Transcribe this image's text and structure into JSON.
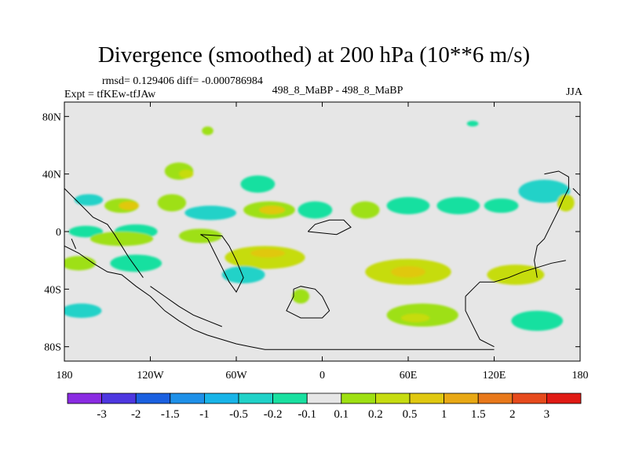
{
  "title": "Divergence (smoothed) at 200 hPa (10**6 m/s)",
  "stats": "rmsd= 0.129406 diff= -0.000786984",
  "experiment": "Expt = tfKEw-tfJAw",
  "cases": "498_8_MaBP - 498_8_MaBP",
  "season": "JJA",
  "colors": {
    "background": "#e6e6e6",
    "coast": "#000000",
    "levels": [
      "#8a2be2",
      "#4d37e0",
      "#1a60e0",
      "#1e90e8",
      "#18b4e8",
      "#20d2c8",
      "#19e0a0",
      "#e6e6e6",
      "#9ee012",
      "#c6dc10",
      "#e0c810",
      "#e8a814",
      "#e8781a",
      "#e64a1c",
      "#e01a14"
    ]
  },
  "chart_data": {
    "type": "heatmap",
    "projection": "cylindrical equidistant",
    "xlim": [
      -180,
      180
    ],
    "ylim": [
      -90,
      90
    ],
    "x_ticks": [
      {
        "value": -180,
        "label": "180"
      },
      {
        "value": -120,
        "label": "120W"
      },
      {
        "value": -60,
        "label": "60W"
      },
      {
        "value": 0,
        "label": "0"
      },
      {
        "value": 60,
        "label": "60E"
      },
      {
        "value": 120,
        "label": "120E"
      },
      {
        "value": 180,
        "label": "180"
      }
    ],
    "y_ticks": [
      {
        "value": 80,
        "label": "80N"
      },
      {
        "value": 40,
        "label": "40N"
      },
      {
        "value": 0,
        "label": "0"
      },
      {
        "value": -40,
        "label": "40S"
      },
      {
        "value": -80,
        "label": "80S"
      }
    ],
    "contour_levels": [
      "-3",
      "-2",
      "-1.5",
      "-1",
      "-0.5",
      "-0.2",
      "-0.1",
      "0.1",
      "0.2",
      "0.5",
      "1",
      "1.5",
      "2",
      "3"
    ],
    "features": [
      {
        "lon": -163,
        "lat": 22,
        "rlon": 10,
        "rlat": 4,
        "c": 5
      },
      {
        "lon": -140,
        "lat": 18,
        "rlon": 12,
        "rlat": 5,
        "c": 8
      },
      {
        "lon": -135,
        "lat": 18,
        "rlon": 7,
        "rlat": 3,
        "c": 10
      },
      {
        "lon": -165,
        "lat": 0,
        "rlon": 12,
        "rlat": 4,
        "c": 6
      },
      {
        "lon": -130,
        "lat": 0,
        "rlon": 15,
        "rlat": 5,
        "c": 6
      },
      {
        "lon": -105,
        "lat": 20,
        "rlon": 10,
        "rlat": 6,
        "c": 8
      },
      {
        "lon": -100,
        "lat": 42,
        "rlon": 10,
        "rlat": 6,
        "c": 8
      },
      {
        "lon": -95,
        "lat": 40,
        "rlon": 5,
        "rlat": 3,
        "c": 9
      },
      {
        "lon": -78,
        "lat": 13,
        "rlon": 18,
        "rlat": 5,
        "c": 5
      },
      {
        "lon": -45,
        "lat": 33,
        "rlon": 12,
        "rlat": 6,
        "c": 6
      },
      {
        "lon": -37,
        "lat": 15,
        "rlon": 18,
        "rlat": 6,
        "c": 8
      },
      {
        "lon": -35,
        "lat": 15,
        "rlon": 9,
        "rlat": 3,
        "c": 10
      },
      {
        "lon": -5,
        "lat": 15,
        "rlon": 12,
        "rlat": 6,
        "c": 6
      },
      {
        "lon": 30,
        "lat": 15,
        "rlon": 10,
        "rlat": 6,
        "c": 8
      },
      {
        "lon": 60,
        "lat": 18,
        "rlon": 15,
        "rlat": 6,
        "c": 6
      },
      {
        "lon": 95,
        "lat": 18,
        "rlon": 15,
        "rlat": 6,
        "c": 6
      },
      {
        "lon": 125,
        "lat": 18,
        "rlon": 12,
        "rlat": 5,
        "c": 6
      },
      {
        "lon": 155,
        "lat": 28,
        "rlon": 18,
        "rlat": 8,
        "c": 5
      },
      {
        "lon": 170,
        "lat": 20,
        "rlon": 6,
        "rlat": 6,
        "c": 9
      },
      {
        "lon": -140,
        "lat": -5,
        "rlon": 22,
        "rlat": 5,
        "c": 8
      },
      {
        "lon": -85,
        "lat": -3,
        "rlon": 15,
        "rlat": 5,
        "c": 8
      },
      {
        "lon": -40,
        "lat": -18,
        "rlon": 28,
        "rlat": 8,
        "c": 9
      },
      {
        "lon": -38,
        "lat": -15,
        "rlon": 12,
        "rlat": 3,
        "c": 10
      },
      {
        "lon": 60,
        "lat": -28,
        "rlon": 30,
        "rlat": 9,
        "c": 9
      },
      {
        "lon": 60,
        "lat": -28,
        "rlon": 12,
        "rlat": 4,
        "c": 10
      },
      {
        "lon": 135,
        "lat": -30,
        "rlon": 20,
        "rlat": 7,
        "c": 9
      },
      {
        "lon": -55,
        "lat": -30,
        "rlon": 15,
        "rlat": 6,
        "c": 5
      },
      {
        "lon": -170,
        "lat": -22,
        "rlon": 12,
        "rlat": 5,
        "c": 8
      },
      {
        "lon": -130,
        "lat": -22,
        "rlon": 18,
        "rlat": 6,
        "c": 6
      },
      {
        "lon": -168,
        "lat": -55,
        "rlon": 14,
        "rlat": 5,
        "c": 5
      },
      {
        "lon": 70,
        "lat": -58,
        "rlon": 25,
        "rlat": 8,
        "c": 8
      },
      {
        "lon": 65,
        "lat": -60,
        "rlon": 10,
        "rlat": 3,
        "c": 9
      },
      {
        "lon": 150,
        "lat": -62,
        "rlon": 18,
        "rlat": 7,
        "c": 6
      },
      {
        "lon": -15,
        "lat": -45,
        "rlon": 6,
        "rlat": 5,
        "c": 8
      },
      {
        "lon": -80,
        "lat": 70,
        "rlon": 4,
        "rlat": 3,
        "c": 8
      },
      {
        "lon": 105,
        "lat": 75,
        "rlon": 4,
        "rlat": 2,
        "c": 6
      }
    ]
  }
}
